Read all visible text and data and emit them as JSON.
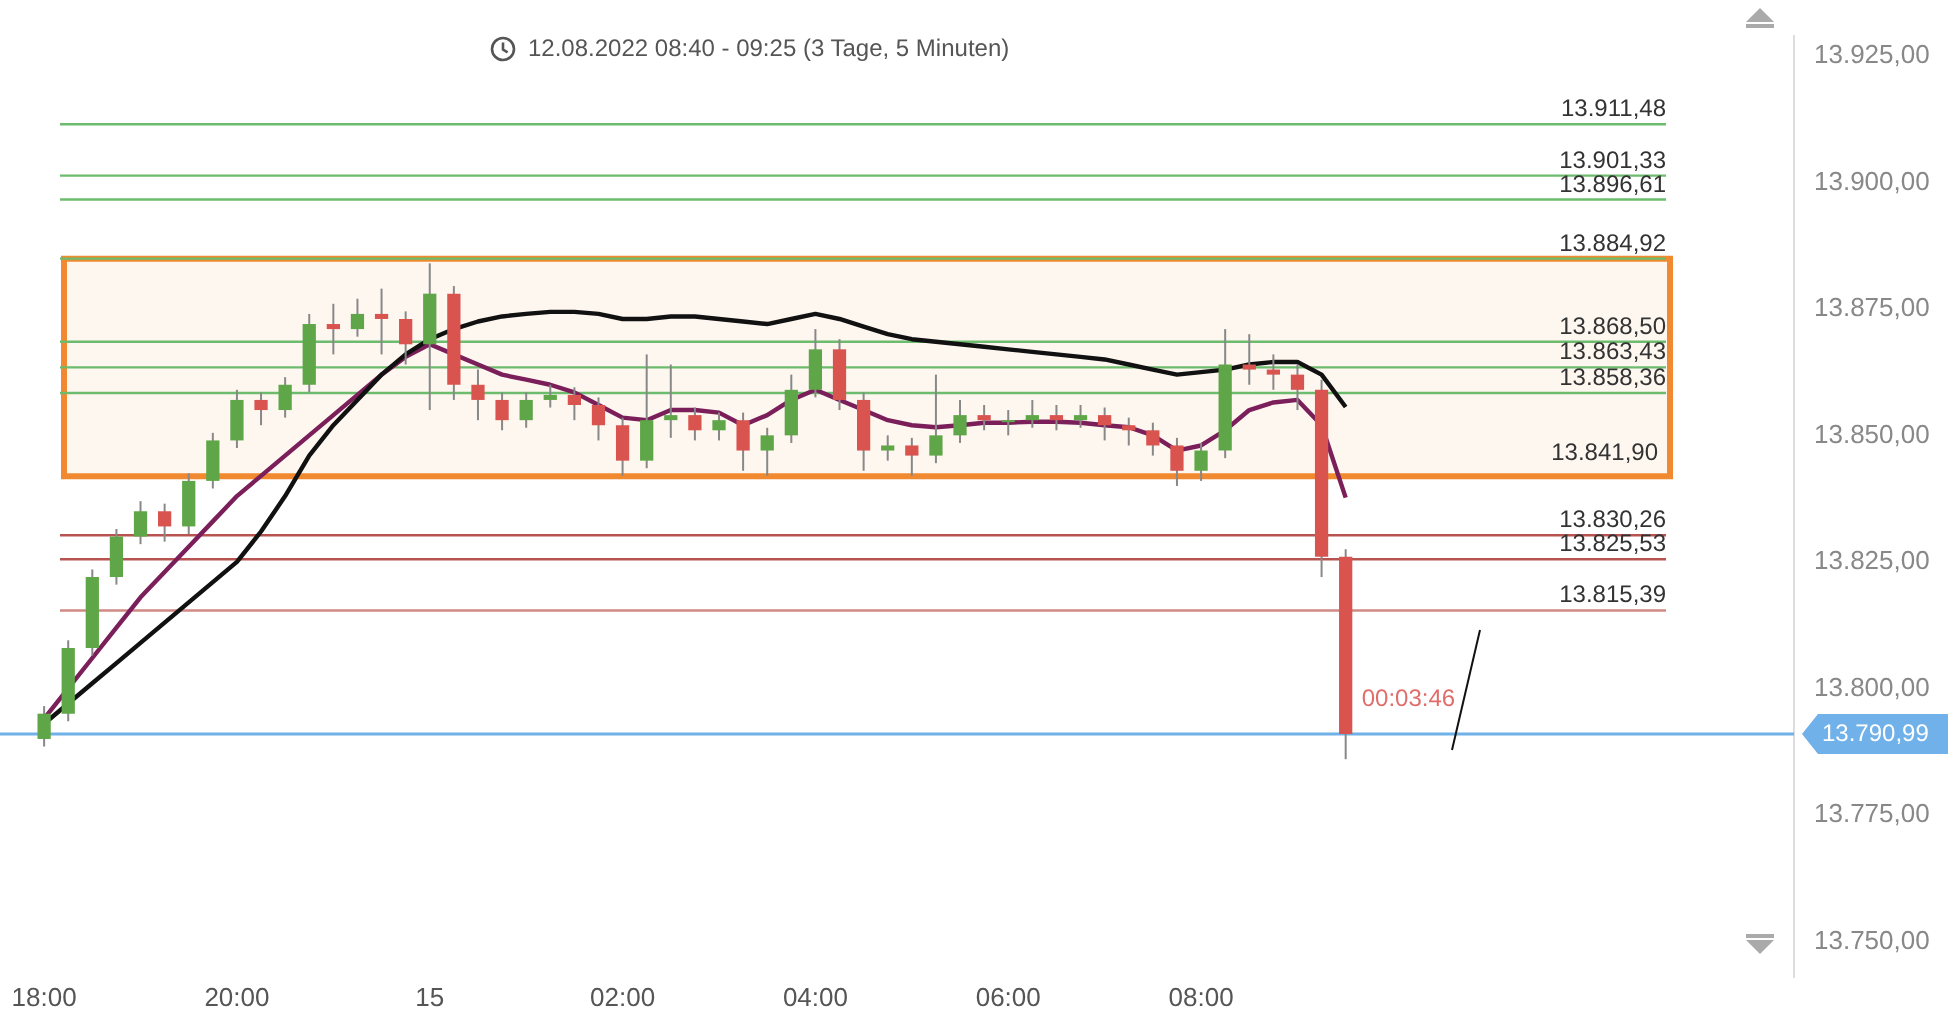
{
  "chart_data": {
    "type": "candlestick",
    "title": "12.08.2022 08:40 - 09:25  (3 Tage, 5 Minuten)",
    "categories": [
      "18:00",
      null,
      null,
      null,
      null,
      null,
      null,
      null,
      "20:00",
      null,
      null,
      null,
      null,
      null,
      null,
      null,
      "15",
      null,
      null,
      null,
      null,
      null,
      null,
      null,
      "02:00",
      null,
      null,
      null,
      null,
      null,
      null,
      null,
      "04:00",
      null,
      null,
      null,
      null,
      null,
      null,
      null,
      "06:00",
      null,
      null,
      null,
      null,
      null,
      null,
      null,
      "08:00",
      null,
      null,
      null,
      null,
      null,
      null
    ],
    "ohlc": [
      [
        13790,
        13796.5,
        13788.5,
        13795
      ],
      [
        13795,
        13809.5,
        13793.5,
        13808
      ],
      [
        13808,
        13823.5,
        13806.5,
        13822
      ],
      [
        13822,
        13831.5,
        13820.5,
        13830
      ],
      [
        13830,
        13837,
        13828.5,
        13835
      ],
      [
        13835,
        13836.5,
        13829,
        13832
      ],
      [
        13832,
        13842.5,
        13830.5,
        13841
      ],
      [
        13841,
        13850.5,
        13839.5,
        13849
      ],
      [
        13849,
        13859,
        13847.5,
        13857
      ],
      [
        13857,
        13858.5,
        13852,
        13855
      ],
      [
        13855,
        13861.5,
        13853.5,
        13860
      ],
      [
        13860,
        13874,
        13858.5,
        13872
      ],
      [
        13872,
        13876,
        13866,
        13871
      ],
      [
        13871,
        13877,
        13869.5,
        13874
      ],
      [
        13874,
        13879,
        13866,
        13873
      ],
      [
        13873,
        13874.5,
        13864,
        13868
      ],
      [
        13868,
        13884,
        13855,
        13878
      ],
      [
        13878,
        13879.5,
        13857,
        13860
      ],
      [
        13860,
        13863,
        13853,
        13857
      ],
      [
        13857,
        13858.5,
        13851,
        13853
      ],
      [
        13853,
        13858.5,
        13851.5,
        13857
      ],
      [
        13857,
        13860,
        13855.5,
        13858
      ],
      [
        13858,
        13859.5,
        13853,
        13856
      ],
      [
        13856,
        13857.5,
        13849,
        13852
      ],
      [
        13852,
        13853.5,
        13842,
        13845
      ],
      [
        13845,
        13866,
        13843.5,
        13853
      ],
      [
        13853,
        13864,
        13849.5,
        13854
      ],
      [
        13854,
        13855.5,
        13849,
        13851
      ],
      [
        13851,
        13854.5,
        13849,
        13853
      ],
      [
        13853,
        13854.5,
        13843,
        13847
      ],
      [
        13847,
        13851.5,
        13842,
        13850
      ],
      [
        13850,
        13862,
        13848.5,
        13859
      ],
      [
        13859,
        13871,
        13857.5,
        13867
      ],
      [
        13867,
        13869,
        13855,
        13857
      ],
      [
        13857,
        13858.5,
        13843,
        13847
      ],
      [
        13847,
        13850,
        13845,
        13848
      ],
      [
        13848,
        13849.5,
        13842,
        13846
      ],
      [
        13846,
        13862,
        13844.5,
        13850
      ],
      [
        13850,
        13857,
        13848.5,
        13854
      ],
      [
        13854,
        13856,
        13851,
        13853
      ],
      [
        13853,
        13855,
        13850,
        13853
      ],
      [
        13853,
        13857,
        13851.5,
        13854
      ],
      [
        13854,
        13856,
        13851,
        13853
      ],
      [
        13853,
        13856,
        13851.5,
        13854
      ],
      [
        13854,
        13855.5,
        13849,
        13852
      ],
      [
        13852,
        13853.5,
        13848,
        13851
      ],
      [
        13851,
        13852.5,
        13846,
        13848
      ],
      [
        13848,
        13849.5,
        13840,
        13843
      ],
      [
        13843,
        13848.5,
        13841,
        13847
      ],
      [
        13847,
        13871,
        13845.5,
        13864
      ],
      [
        13864,
        13870,
        13860,
        13863
      ],
      [
        13863,
        13866,
        13859,
        13862
      ],
      [
        13862,
        13864,
        13855,
        13859
      ],
      [
        13859,
        13861,
        13822,
        13826
      ],
      [
        13826,
        13827.5,
        13786,
        13790.99
      ]
    ],
    "series": [
      {
        "type": "line",
        "color": "#111111",
        "values": [
          13793,
          13797,
          13801,
          13805,
          13809,
          13813,
          13817,
          13821,
          13825,
          13831,
          13838,
          13846,
          13852,
          13857,
          13862,
          13866,
          13869,
          13871,
          13872.5,
          13873.5,
          13874,
          13874.4,
          13874.4,
          13874,
          13873,
          13873,
          13873.5,
          13873.5,
          13873,
          13872.5,
          13872,
          13873,
          13874,
          13873,
          13871.5,
          13870,
          13869,
          13868.5,
          13868,
          13867.5,
          13867,
          13866.5,
          13866,
          13865.5,
          13865,
          13864,
          13863,
          13862,
          13862.5,
          13863,
          13864,
          13864.5,
          13864.5,
          13862,
          13855.6
        ]
      },
      {
        "type": "line",
        "color": "#7b1f5a",
        "values": [
          13794,
          13800,
          13806,
          13812,
          13818,
          13823,
          13828,
          13833,
          13838,
          13842,
          13846,
          13850,
          13854,
          13858,
          13862,
          13865.5,
          13868,
          13866,
          13864,
          13862,
          13861,
          13860,
          13858.5,
          13856,
          13853.5,
          13853,
          13855,
          13855,
          13854.5,
          13852,
          13854,
          13857,
          13859,
          13857,
          13855,
          13853,
          13852,
          13851.6,
          13852,
          13852.5,
          13852.5,
          13852.7,
          13852.7,
          13852.5,
          13852,
          13851.6,
          13850,
          13847,
          13848,
          13851,
          13855,
          13856.5,
          13857,
          13852,
          13837.7
        ]
      }
    ],
    "ylim": [
      13743,
      13929
    ],
    "yticks": [
      {
        "value": 13750,
        "label": "13.750,00"
      },
      {
        "value": 13775,
        "label": "13.775,00"
      },
      {
        "value": 13800,
        "label": "13.800,00"
      },
      {
        "value": 13825,
        "label": "13.825,00"
      },
      {
        "value": 13850,
        "label": "13.850,00"
      },
      {
        "value": 13875,
        "label": "13.875,00"
      },
      {
        "value": 13900,
        "label": "13.900,00"
      },
      {
        "value": 13925,
        "label": "13.925,00"
      }
    ],
    "ref_lines": [
      {
        "axis": "y",
        "value": 13911.48,
        "label": "13.911,48",
        "color": "#6dbb6d"
      },
      {
        "axis": "y",
        "value": 13901.33,
        "label": "13.901,33",
        "color": "#6dbb6d"
      },
      {
        "axis": "y",
        "value": 13896.61,
        "label": "13.896,61",
        "color": "#6dbb6d"
      },
      {
        "axis": "y",
        "value": 13884.92,
        "label": "13.884,92",
        "color": "#6dbb6d"
      },
      {
        "axis": "y",
        "value": 13868.5,
        "label": "13.868,50",
        "color": "#6dbb6d"
      },
      {
        "axis": "y",
        "value": 13863.43,
        "label": "13.863,43",
        "color": "#6dbb6d"
      },
      {
        "axis": "y",
        "value": 13858.36,
        "label": "13.858,36",
        "color": "#6dbb6d"
      },
      {
        "axis": "y",
        "value": 13830.26,
        "label": "13.830,26",
        "color": "#b85450"
      },
      {
        "axis": "y",
        "value": 13825.53,
        "label": "13.825,53",
        "color": "#b85450"
      },
      {
        "axis": "y",
        "value": 13815.39,
        "label": "13.815,39",
        "color": "#d08a85"
      },
      {
        "axis": "y",
        "value": 13790.99,
        "label": "13.790,99",
        "color": "#6fb1e8"
      }
    ],
    "bands": [
      {
        "axis": "y",
        "from": 13841.9,
        "to": 13884.92,
        "label": "13.841,90",
        "color": "#f0892f"
      }
    ],
    "annotations": [
      "00:03:46"
    ]
  }
}
